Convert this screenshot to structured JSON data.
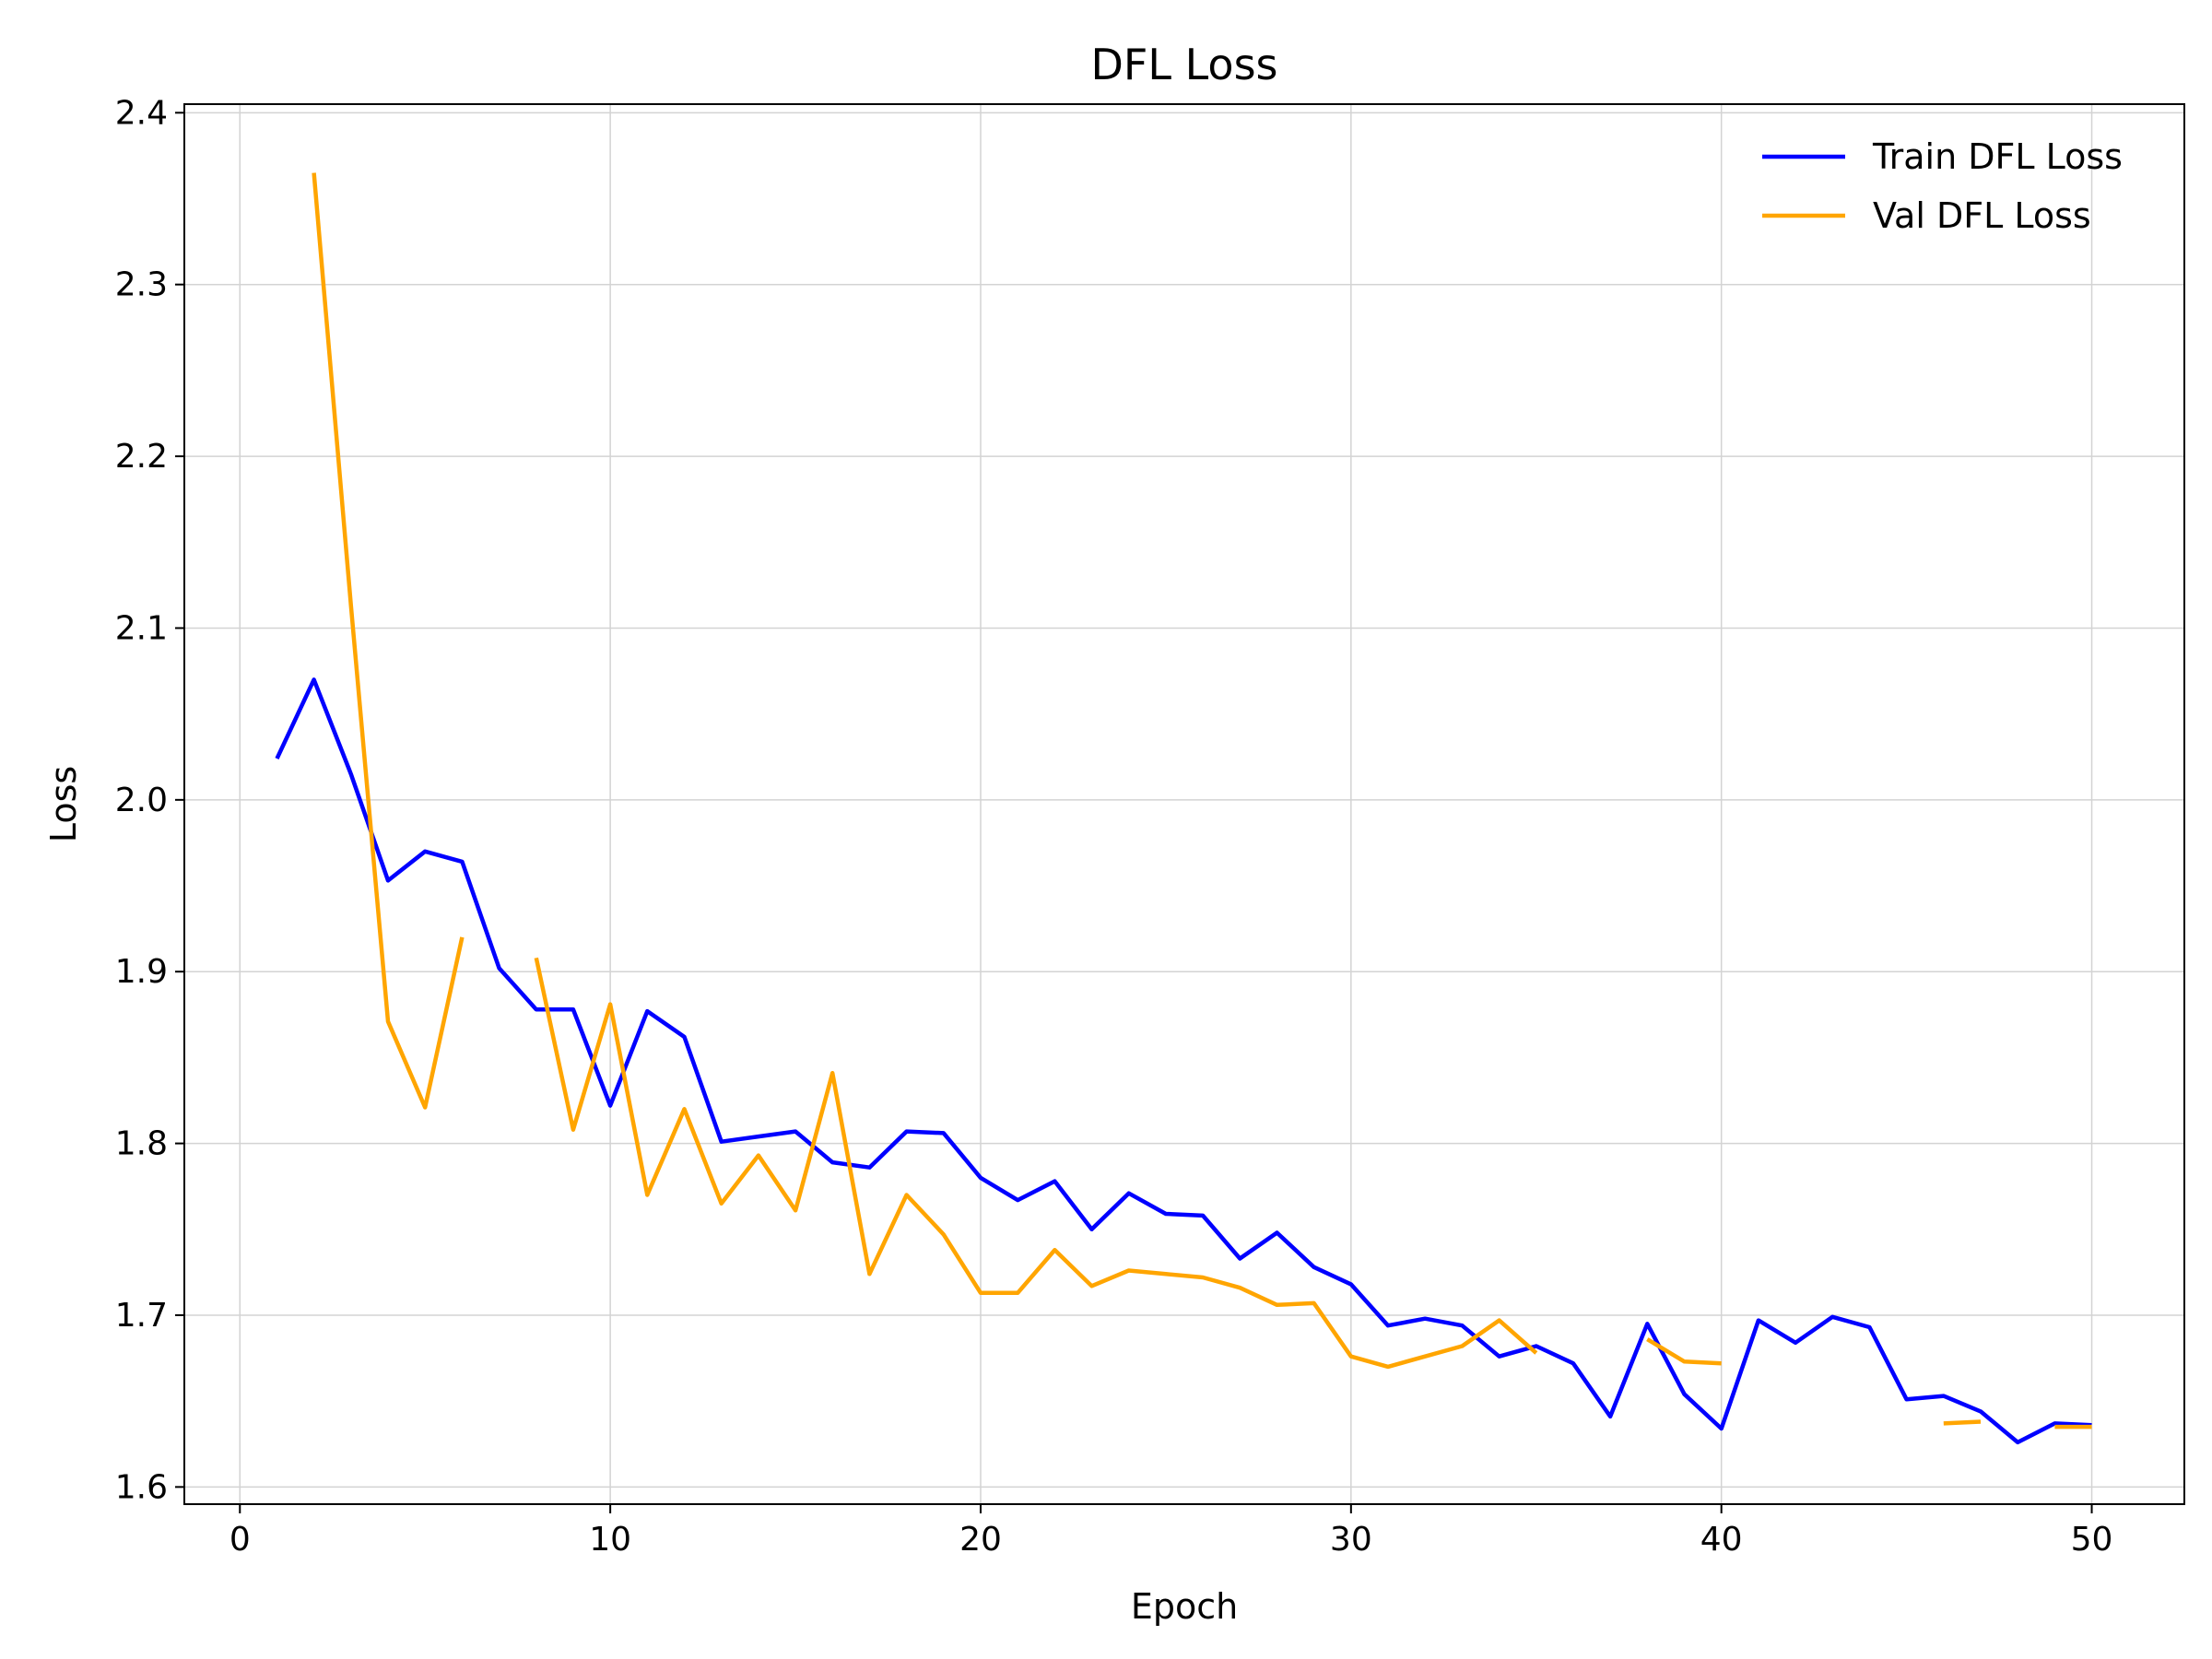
{
  "chart_data": {
    "type": "line",
    "title": "DFL Loss",
    "xlabel": "Epoch",
    "ylabel": "Loss",
    "xlim": [
      -1.5,
      52.5
    ],
    "ylim": [
      1.59,
      2.405
    ],
    "xticks": [
      0,
      10,
      20,
      30,
      40,
      50
    ],
    "yticks": [
      1.6,
      1.7,
      1.8,
      1.9,
      2.0,
      2.1,
      2.2,
      2.3,
      2.4
    ],
    "grid": true,
    "legend_position": "top-right",
    "x": [
      1,
      2,
      3,
      4,
      5,
      6,
      7,
      8,
      9,
      10,
      11,
      12,
      13,
      14,
      15,
      16,
      17,
      18,
      19,
      20,
      21,
      22,
      23,
      24,
      25,
      26,
      27,
      28,
      29,
      30,
      31,
      32,
      33,
      34,
      35,
      36,
      37,
      38,
      39,
      40,
      41,
      42,
      43,
      44,
      45,
      46,
      47,
      48,
      49,
      50
    ],
    "series": [
      {
        "name": "Train DFL Loss",
        "color": "#0000ff",
        "values": [
          2.024,
          2.07,
          2.015,
          1.953,
          1.97,
          1.964,
          1.902,
          1.878,
          1.878,
          1.822,
          1.877,
          1.862,
          1.801,
          1.804,
          1.807,
          1.789,
          1.786,
          1.807,
          1.806,
          1.78,
          1.767,
          1.778,
          1.75,
          1.771,
          1.759,
          1.758,
          1.733,
          1.748,
          1.728,
          1.718,
          1.694,
          1.698,
          1.694,
          1.676,
          1.682,
          1.672,
          1.641,
          1.695,
          1.654,
          1.634,
          1.697,
          1.684,
          1.699,
          1.693,
          1.651,
          1.653,
          1.644,
          1.626,
          1.637,
          1.636
        ]
      },
      {
        "name": "Val DFL Loss",
        "color": "#ffa500",
        "values": [
          null,
          2.365,
          2.113,
          1.871,
          1.821,
          1.92,
          null,
          1.908,
          1.808,
          1.881,
          1.77,
          1.82,
          1.765,
          1.793,
          1.761,
          1.841,
          1.724,
          1.77,
          1.747,
          1.713,
          1.713,
          1.738,
          1.717,
          1.726,
          1.724,
          1.722,
          1.716,
          1.706,
          1.707,
          1.676,
          1.67,
          1.676,
          1.682,
          1.697,
          1.678,
          null,
          null,
          1.686,
          1.673,
          1.672,
          null,
          null,
          null,
          null,
          null,
          1.637,
          1.638,
          null,
          1.635,
          1.635
        ]
      }
    ]
  }
}
